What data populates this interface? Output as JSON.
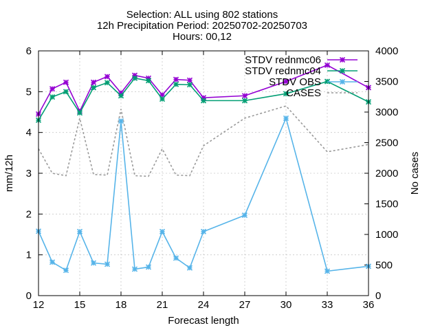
{
  "chart_data": {
    "type": "line",
    "title_lines": [
      "Selection: ALL using   802 stations",
      "12h Precipitation   Period: 20250702-20250703",
      "Hours: 00,12"
    ],
    "xlabel": "Forecast length",
    "ylabel": "mm/12h",
    "y2label": "No cases",
    "xlim": [
      12,
      36
    ],
    "ylim": [
      0,
      6
    ],
    "y2lim": [
      0,
      4000
    ],
    "xticks": [
      12,
      15,
      18,
      21,
      24,
      27,
      30,
      33,
      36
    ],
    "yticks": [
      0,
      1,
      2,
      3,
      4,
      5,
      6
    ],
    "y2ticks": [
      0,
      500,
      1000,
      1500,
      2000,
      2500,
      3000,
      3500,
      4000
    ],
    "grid": true,
    "legend_position": "top-right",
    "x": [
      12,
      13,
      14,
      15,
      16,
      17,
      18,
      19,
      20,
      21,
      22,
      23,
      24,
      27,
      30,
      33,
      36
    ],
    "series": [
      {
        "name": "STDV rednmc06",
        "axis": "y",
        "color": "#9400d3",
        "values": [
          4.45,
          5.07,
          5.23,
          4.52,
          5.23,
          5.37,
          4.97,
          5.4,
          5.33,
          4.92,
          5.3,
          5.28,
          4.85,
          4.9,
          5.25,
          5.65,
          5.1
        ]
      },
      {
        "name": "STDV rednmc04",
        "axis": "y",
        "color": "#009e73",
        "values": [
          4.3,
          4.87,
          5.0,
          4.48,
          5.1,
          5.22,
          4.9,
          5.33,
          5.27,
          4.82,
          5.18,
          5.17,
          4.78,
          4.78,
          4.95,
          5.25,
          4.75
        ]
      },
      {
        "name": "STDV OBS",
        "axis": "y",
        "color": "#56b4e9",
        "values": [
          1.58,
          0.82,
          0.62,
          1.57,
          0.8,
          0.77,
          4.28,
          0.65,
          0.7,
          1.57,
          0.92,
          0.68,
          1.57,
          1.97,
          4.35,
          0.6,
          0.72
        ]
      },
      {
        "name": "CASES",
        "axis": "y2",
        "color": "#999999",
        "values": [
          2400,
          2000,
          1960,
          2900,
          1980,
          1970,
          3050,
          1960,
          1950,
          2400,
          1970,
          1960,
          2450,
          2900,
          3100,
          2350,
          2470
        ]
      }
    ]
  }
}
